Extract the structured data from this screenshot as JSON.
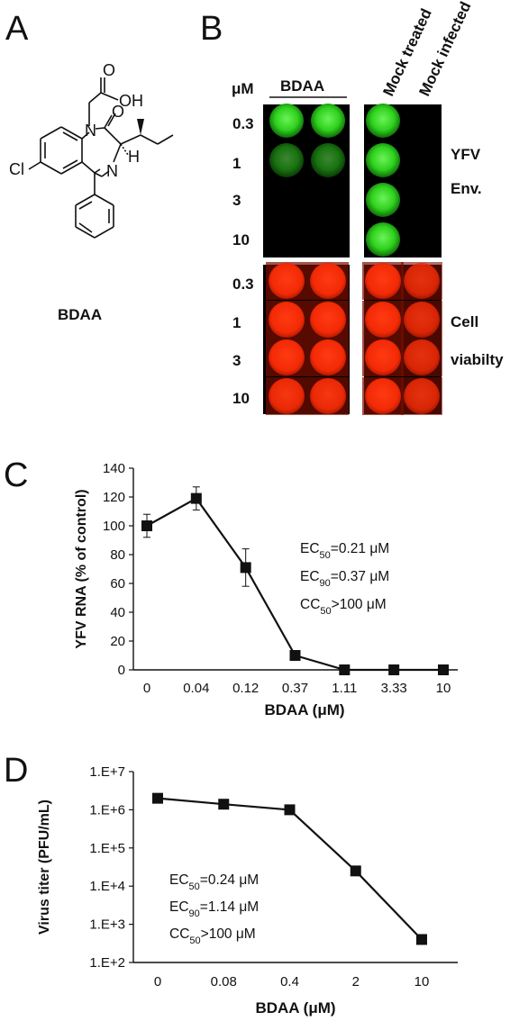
{
  "panels": {
    "a": "A",
    "b": "B",
    "c": "C",
    "d": "D"
  },
  "structure": {
    "compound_name": "BDAA",
    "atoms": {
      "oh": "OH",
      "o": "O",
      "n1": "N",
      "n2": "N",
      "h": "H",
      "cl": "Cl"
    }
  },
  "plate": {
    "unit_label": "μM",
    "compound_header": "BDAA",
    "mock_treated": "Mock treated",
    "mock_infected": "Mock infected",
    "concentrations": [
      "0.3",
      "1",
      "3",
      "10"
    ],
    "concentrations_lower": [
      "0.3",
      "1",
      "3",
      "10"
    ],
    "top_label_1": "YFV",
    "top_label_2": "Env.",
    "bottom_label_1": "Cell",
    "bottom_label_2": "viabilty",
    "colors": {
      "green": "#2ecc1f",
      "red": "#ff2a0a",
      "background": "#000000"
    },
    "green_intensity": [
      [
        1.0,
        1.0,
        1.0,
        0.0
      ],
      [
        0.55,
        0.55,
        1.0,
        0.0
      ],
      [
        0.0,
        0.0,
        1.0,
        0.0
      ],
      [
        0.0,
        0.0,
        1.0,
        0.0
      ]
    ],
    "red_intensity": [
      [
        1.0,
        1.0,
        1.0,
        0.85
      ],
      [
        1.0,
        1.0,
        1.0,
        0.85
      ],
      [
        1.0,
        1.0,
        1.0,
        0.85
      ],
      [
        0.95,
        0.95,
        1.0,
        0.85
      ]
    ]
  },
  "chart_data": [
    {
      "type": "line",
      "panel": "C",
      "categories": [
        "0",
        "0.04",
        "0.12",
        "0.37",
        "1.11",
        "3.33",
        "10"
      ],
      "values": [
        100,
        119,
        71,
        10,
        0,
        0,
        0
      ],
      "errors": [
        8,
        8,
        13,
        2,
        0,
        0,
        0
      ],
      "xlabel": "BDAA (μM)",
      "ylabel": "YFV RNA (% of control)",
      "ylim": [
        0,
        140
      ],
      "yticks": [
        "0",
        "20",
        "40",
        "60",
        "80",
        "100",
        "120",
        "140"
      ],
      "annotations": [
        {
          "base": "EC",
          "sub": "50",
          "rest": "=0.21 μM"
        },
        {
          "base": "EC",
          "sub": "90",
          "rest": "=0.37 μM"
        },
        {
          "base": "CC",
          "sub": "50",
          "rest": ">100 μM"
        }
      ],
      "grid": false,
      "marker": "square"
    },
    {
      "type": "line",
      "panel": "D",
      "categories": [
        "0",
        "0.08",
        "0.4",
        "2",
        "10"
      ],
      "values": [
        2000000,
        1400000,
        1000000,
        25000,
        400
      ],
      "xlabel": "BDAA (μM)",
      "ylabel": "Virus titer (PFU/mL)",
      "yscale": "log",
      "ylim": [
        100,
        10000000
      ],
      "yticks": [
        "1.E+2",
        "1.E+3",
        "1.E+4",
        "1.E+5",
        "1.E+6",
        "1.E+7"
      ],
      "annotations": [
        {
          "base": "EC",
          "sub": "50",
          "rest": "=0.24 μM"
        },
        {
          "base": "EC",
          "sub": "90",
          "rest": "=1.14 μM"
        },
        {
          "base": "CC",
          "sub": "50",
          "rest": ">100 μM"
        }
      ],
      "grid": false,
      "marker": "square"
    }
  ]
}
